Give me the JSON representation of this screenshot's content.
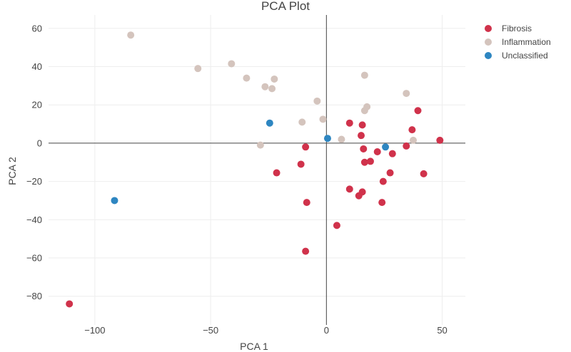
{
  "chart_data": {
    "type": "scatter",
    "title": "PCA Plot",
    "xlabel": "PCA 1",
    "ylabel": "PCA 2",
    "xlim": [
      -120,
      60
    ],
    "ylim": [
      -95,
      67
    ],
    "xticks": [
      -100,
      -50,
      0,
      50
    ],
    "yticks": [
      -80,
      -60,
      -40,
      -20,
      0,
      20,
      40,
      60
    ],
    "xtick_labels": [
      "−100",
      "−50",
      "0",
      "50"
    ],
    "ytick_labels": [
      "−80",
      "−60",
      "−40",
      "−20",
      "0",
      "20",
      "40",
      "60"
    ],
    "grid": true,
    "zero_lines": true,
    "legend_position": "top-right",
    "series": [
      {
        "name": "Fibrosis",
        "color": "#d0324b",
        "points": [
          [
            -111,
            -84
          ],
          [
            -9,
            -56.5
          ],
          [
            -8.5,
            -31
          ],
          [
            -21.5,
            -15.5
          ],
          [
            -11,
            -11
          ],
          [
            -9,
            -2
          ],
          [
            4.5,
            -43
          ],
          [
            10,
            -24
          ],
          [
            14,
            -27.5
          ],
          [
            15.5,
            -25.5
          ],
          [
            10,
            10.5
          ],
          [
            15,
            4
          ],
          [
            15.5,
            9.5
          ],
          [
            16,
            -3
          ],
          [
            16.5,
            -10
          ],
          [
            19,
            -9.5
          ],
          [
            22,
            -4.5
          ],
          [
            24.5,
            -20
          ],
          [
            24,
            -31
          ],
          [
            27.5,
            -15.5
          ],
          [
            28.5,
            -5.5
          ],
          [
            34.5,
            -1.5
          ],
          [
            37,
            7
          ],
          [
            39.5,
            17
          ],
          [
            42,
            -16
          ],
          [
            49,
            1.5
          ]
        ]
      },
      {
        "name": "Inflammation",
        "color": "#d4c4bd",
        "points": [
          [
            -84.5,
            56.5
          ],
          [
            -55.5,
            39
          ],
          [
            -41,
            41.5
          ],
          [
            -34.5,
            34
          ],
          [
            -26.5,
            29.5
          ],
          [
            -22.5,
            33.5
          ],
          [
            -23.5,
            28.5
          ],
          [
            -28.5,
            -1
          ],
          [
            -10.5,
            11
          ],
          [
            -4,
            22
          ],
          [
            -1.5,
            12.5
          ],
          [
            6.5,
            2
          ],
          [
            16.5,
            35.5
          ],
          [
            16.5,
            17
          ],
          [
            17.5,
            19
          ],
          [
            34.5,
            26
          ],
          [
            37.5,
            1.5
          ]
        ]
      },
      {
        "name": "Unclassified",
        "color": "#2e86c1",
        "points": [
          [
            -91.5,
            -30
          ],
          [
            -24.5,
            10.5
          ],
          [
            0.5,
            2.5
          ],
          [
            25.5,
            -2
          ]
        ]
      }
    ]
  }
}
